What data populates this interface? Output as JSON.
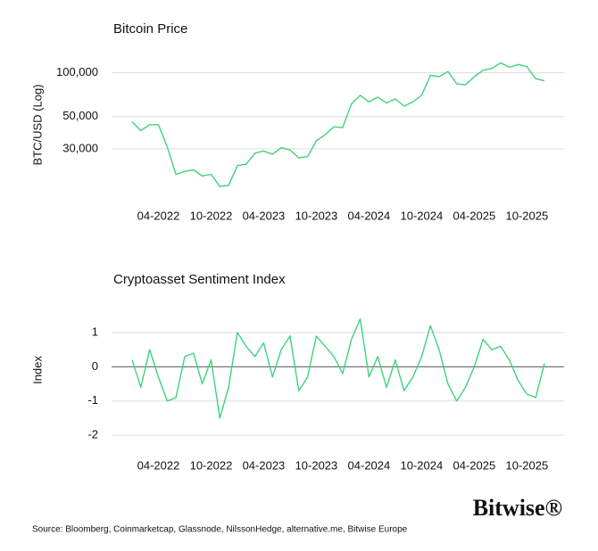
{
  "chart_data": [
    {
      "type": "line",
      "title": "Bitcoin Price",
      "y_label": "BTC/USD (Log)",
      "yscale": "log",
      "grid": true,
      "x": [
        "2022-01",
        "2022-02",
        "2022-03",
        "2022-04",
        "2022-05",
        "2022-06",
        "2022-07",
        "2022-08",
        "2022-09",
        "2022-10",
        "2022-11",
        "2022-12",
        "2023-01",
        "2023-02",
        "2023-03",
        "2023-04",
        "2023-05",
        "2023-06",
        "2023-07",
        "2023-08",
        "2023-09",
        "2023-10",
        "2023-11",
        "2023-12",
        "2024-01",
        "2024-02",
        "2024-03",
        "2024-04",
        "2024-05",
        "2024-06",
        "2024-07",
        "2024-08",
        "2024-09",
        "2024-10",
        "2024-11",
        "2024-12",
        "2025-01",
        "2025-02",
        "2025-03",
        "2025-04",
        "2025-05",
        "2025-06",
        "2025-07",
        "2025-08",
        "2025-09",
        "2025-10",
        "2025-11",
        "2025-12"
      ],
      "series": [
        {
          "name": "Bitcoin Price",
          "color": "#3fd27f",
          "values": [
            46000,
            40000,
            44000,
            44000,
            31000,
            20000,
            21000,
            21500,
            19500,
            20000,
            16500,
            16800,
            23000,
            23500,
            28000,
            29000,
            27500,
            30500,
            29500,
            26000,
            26500,
            34000,
            37500,
            42500,
            42000,
            61000,
            70000,
            63000,
            68000,
            62000,
            66000,
            59000,
            63000,
            70000,
            96000,
            94000,
            102000,
            84000,
            82500,
            94000,
            104000,
            107000,
            117000,
            109000,
            114000,
            110000,
            91000,
            88000
          ]
        }
      ],
      "xlim": [
        "2022-01",
        "2025-12"
      ],
      "xticks": [
        {
          "value": "2022-04",
          "label": "04-2022"
        },
        {
          "value": "2022-10",
          "label": "10-2022"
        },
        {
          "value": "2023-04",
          "label": "04-2023"
        },
        {
          "value": "2023-10",
          "label": "10-2023"
        },
        {
          "value": "2024-04",
          "label": "04-2024"
        },
        {
          "value": "2024-10",
          "label": "10-2024"
        },
        {
          "value": "2025-04",
          "label": "04-2025"
        },
        {
          "value": "2025-10",
          "label": "10-2025"
        }
      ],
      "ylim": [
        15000,
        130000
      ],
      "yticks": [
        {
          "value": 30000,
          "label": "30,000"
        },
        {
          "value": 50000,
          "label": "50,000"
        },
        {
          "value": 100000,
          "label": "100,000"
        }
      ]
    },
    {
      "type": "line",
      "title": "Cryptoasset Sentiment Index",
      "y_label": "Index",
      "grid": true,
      "zero_line": true,
      "x": [
        "2022-01",
        "2022-02",
        "2022-03",
        "2022-04",
        "2022-05",
        "2022-06",
        "2022-07",
        "2022-08",
        "2022-09",
        "2022-10",
        "2022-11",
        "2022-12",
        "2023-01",
        "2023-02",
        "2023-03",
        "2023-04",
        "2023-05",
        "2023-06",
        "2023-07",
        "2023-08",
        "2023-09",
        "2023-10",
        "2023-11",
        "2023-12",
        "2024-01",
        "2024-02",
        "2024-03",
        "2024-04",
        "2024-05",
        "2024-06",
        "2024-07",
        "2024-08",
        "2024-09",
        "2024-10",
        "2024-11",
        "2024-12",
        "2025-01",
        "2025-02",
        "2025-03",
        "2025-04",
        "2025-05",
        "2025-06",
        "2025-07",
        "2025-08",
        "2025-09",
        "2025-10",
        "2025-11",
        "2025-12"
      ],
      "series": [
        {
          "name": "Cryptoasset Sentiment Index",
          "color": "#3fd27f",
          "values": [
            0.2,
            -0.6,
            0.5,
            -0.3,
            -1.0,
            -0.9,
            0.3,
            0.4,
            -0.5,
            0.2,
            -1.5,
            -0.6,
            1.0,
            0.6,
            0.3,
            0.7,
            -0.3,
            0.5,
            0.9,
            -0.7,
            -0.3,
            0.9,
            0.6,
            0.3,
            -0.2,
            0.8,
            1.4,
            -0.3,
            0.3,
            -0.6,
            0.2,
            -0.7,
            -0.3,
            0.3,
            1.2,
            0.5,
            -0.5,
            -1.0,
            -0.6,
            0.0,
            0.8,
            0.5,
            0.6,
            0.2,
            -0.4,
            -0.8,
            -0.9,
            0.1
          ]
        }
      ],
      "xlim": [
        "2022-01",
        "2025-12"
      ],
      "xticks": [
        {
          "value": "2022-04",
          "label": "04-2022"
        },
        {
          "value": "2022-10",
          "label": "10-2022"
        },
        {
          "value": "2023-04",
          "label": "04-2023"
        },
        {
          "value": "2023-10",
          "label": "10-2023"
        },
        {
          "value": "2024-04",
          "label": "04-2024"
        },
        {
          "value": "2024-10",
          "label": "10-2024"
        },
        {
          "value": "2025-04",
          "label": "04-2025"
        },
        {
          "value": "2025-10",
          "label": "10-2025"
        }
      ],
      "ylim": [
        -2.1,
        1.6
      ],
      "yticks": [
        -2,
        -1,
        0,
        1
      ]
    }
  ],
  "logo": "Bitwise®",
  "source": "Source: Bloomberg, Coinmarketcap, Glassnode, NilssonHedge, alternative.me, Bitwise Europe"
}
